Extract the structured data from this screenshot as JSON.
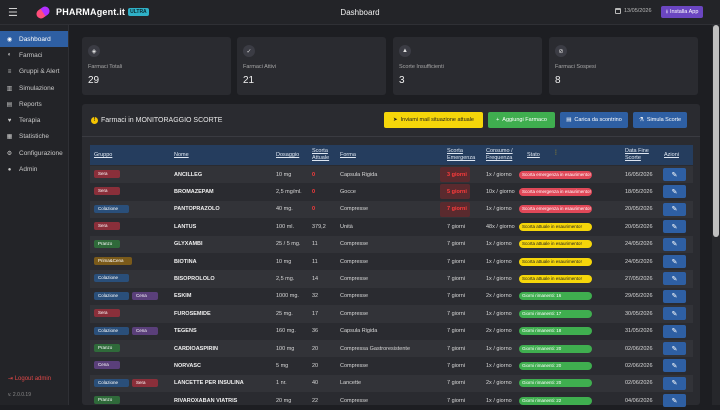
{
  "app": {
    "brand": "PHARMAgent.it",
    "brand_badge": "ULTRA",
    "page_title": "Dashboard",
    "date": "13/05/2026",
    "install_label": "Installa App"
  },
  "sidebar": {
    "items": [
      {
        "label": "Dashboard",
        "icon": "dashboard-icon",
        "active": true
      },
      {
        "label": "Farmaci",
        "icon": "pill-icon"
      },
      {
        "label": "Gruppi & Alert",
        "icon": "layers-icon"
      },
      {
        "label": "Simulazione",
        "icon": "chart-icon"
      },
      {
        "label": "Reports",
        "icon": "file-icon"
      },
      {
        "label": "Terapia",
        "icon": "heart-pulse-icon"
      },
      {
        "label": "Statistiche",
        "icon": "stats-icon"
      },
      {
        "label": "Configurazione",
        "icon": "gear-icon"
      },
      {
        "label": "Admin",
        "icon": "user-icon"
      }
    ],
    "logout": "Logout admin",
    "version": "v. 2.0.0.19"
  },
  "cards": [
    {
      "label": "Farmaci Totali",
      "value": "29",
      "icon": "pills-icon"
    },
    {
      "label": "Farmaci Attivi",
      "value": "21",
      "icon": "check-icon"
    },
    {
      "label": "Scorte Insufficienti",
      "value": "3",
      "icon": "warning-icon"
    },
    {
      "label": "Farmaci Sospesi",
      "value": "8",
      "icon": "ban-icon"
    }
  ],
  "panel": {
    "title": "Farmaci in MONITORAGGIO SCORTE",
    "buttons": {
      "mail": "Inviami mail situazione attuale",
      "add": "Aggiungi Farmaco",
      "load": "Carica da scontrino",
      "simulate": "Simula Scorte"
    }
  },
  "table": {
    "headers": {
      "gruppo": "Gruppo",
      "nome": "Nome",
      "dosaggio": "Dosaggio",
      "scorta": "Scorta Attuale",
      "forma": "Forma",
      "emergenza": "Scorta Emergenza",
      "consumo": "Consumo / Frequenza",
      "stato": "Stato",
      "data": "Data Fine Scorte",
      "azioni": "Azioni"
    },
    "rows": [
      {
        "tags": [
          {
            "text": "Sera",
            "color": "#8a2f3a"
          }
        ],
        "name": "ANCILLEG",
        "dose": "10 mg",
        "stock": "0",
        "stock_red": true,
        "form": "Capsula Rigida",
        "emerg": "3 giorni",
        "emerg_red": true,
        "consumo": "1x / giorno",
        "status": "Scorta emergenza in esaurimento!",
        "status_color": "red",
        "date": "16/05/2026"
      },
      {
        "tags": [
          {
            "text": "Sera",
            "color": "#8a2f3a"
          }
        ],
        "name": "BROMAZEPAM",
        "dose": "2,5 mg/ml.",
        "stock": "0",
        "stock_red": true,
        "form": "Gocce",
        "emerg": "5 giorni",
        "emerg_red": true,
        "consumo": "10x / giorno",
        "status": "Scorta emergenza in esaurimento!",
        "status_color": "red",
        "date": "18/05/2026"
      },
      {
        "tags": [
          {
            "text": "Colazione",
            "color": "#2a4f7a"
          }
        ],
        "name": "PANTOPRAZOLO",
        "dose": "40 mg.",
        "stock": "0",
        "stock_red": true,
        "form": "Compresse",
        "emerg": "7 giorni",
        "emerg_red": true,
        "consumo": "1x / giorno",
        "status": "Scorta emergenza in esaurimento!",
        "status_color": "red",
        "date": "20/05/2026"
      },
      {
        "tags": [
          {
            "text": "Sera",
            "color": "#8a2f3a"
          }
        ],
        "name": "LANTUS",
        "dose": "100 ml.",
        "stock": "379,2",
        "form": "Unità",
        "emerg": "7 giorni",
        "consumo": "48x / giorno",
        "status": "Scorta attuale in esaurimento!",
        "status_color": "yellow",
        "date": "20/05/2026"
      },
      {
        "tags": [
          {
            "text": "Pranzo",
            "color": "#2f6a3a"
          }
        ],
        "name": "GLYXAMBI",
        "dose": "25 / 5 mg.",
        "stock": "11",
        "form": "Compresse",
        "emerg": "7 giorni",
        "consumo": "1x / giorno",
        "status": "Scorta attuale in esaurimento!",
        "status_color": "yellow",
        "date": "24/05/2026"
      },
      {
        "tags": [
          {
            "text": "Prima&Cena",
            "color": "#7a5a1a"
          }
        ],
        "name": "BIOTINA",
        "dose": "10 mg",
        "stock": "11",
        "form": "Compresse",
        "emerg": "7 giorni",
        "consumo": "1x / giorno",
        "status": "Scorta attuale in esaurimento!",
        "status_color": "yellow",
        "date": "24/05/2026"
      },
      {
        "tags": [
          {
            "text": "Colazione",
            "color": "#2a4f7a"
          }
        ],
        "name": "BISOPROLOLO",
        "dose": "2,5 mg.",
        "stock": "14",
        "form": "Compresse",
        "emerg": "7 giorni",
        "consumo": "1x / giorno",
        "status": "Scorta attuale in esaurimento!",
        "status_color": "yellow",
        "date": "27/05/2026"
      },
      {
        "tags": [
          {
            "text": "Colazione",
            "color": "#2a4f7a"
          },
          {
            "text": "Cena",
            "color": "#5a3f7a"
          }
        ],
        "name": "ESKIM",
        "dose": "1000 mg.",
        "stock": "32",
        "form": "Compresse",
        "emerg": "7 giorni",
        "consumo": "2x / giorno",
        "status": "Giorni rimanenti: 16",
        "status_color": "green",
        "date": "29/05/2026"
      },
      {
        "tags": [
          {
            "text": "Sera",
            "color": "#8a2f3a"
          }
        ],
        "name": "FUROSEMIDE",
        "dose": "25 mg.",
        "stock": "17",
        "form": "Compresse",
        "emerg": "7 giorni",
        "consumo": "1x / giorno",
        "status": "Giorni rimanenti: 17",
        "status_color": "green",
        "date": "30/05/2026"
      },
      {
        "tags": [
          {
            "text": "Colazione",
            "color": "#2a4f7a"
          },
          {
            "text": "Cena",
            "color": "#5a3f7a"
          }
        ],
        "name": "TEGENS",
        "dose": "160 mg.",
        "stock": "36",
        "form": "Capsula Rigida",
        "emerg": "7 giorni",
        "consumo": "2x / giorno",
        "status": "Giorni rimanenti: 18",
        "status_color": "green",
        "date": "31/05/2026"
      },
      {
        "tags": [
          {
            "text": "Pranzo",
            "color": "#2f6a3a"
          }
        ],
        "name": "CARDIOASPIRIN",
        "dose": "100 mg",
        "stock": "20",
        "form": "Compressa Gastroresistente",
        "emerg": "7 giorni",
        "consumo": "1x / giorno",
        "status": "Giorni rimanenti: 20",
        "status_color": "green",
        "date": "02/06/2026"
      },
      {
        "tags": [
          {
            "text": "Cena",
            "color": "#5a3f7a"
          }
        ],
        "name": "NORVASC",
        "dose": "5 mg",
        "stock": "20",
        "form": "Compresse",
        "emerg": "7 giorni",
        "consumo": "1x / giorno",
        "status": "Giorni rimanenti: 20",
        "status_color": "green",
        "date": "02/06/2026"
      },
      {
        "tags": [
          {
            "text": "Colazione",
            "color": "#2a4f7a"
          },
          {
            "text": "Sera",
            "color": "#8a2f3a"
          }
        ],
        "name": "LANCETTE PER INSULINA",
        "dose": "1 nr.",
        "stock": "40",
        "form": "Lancette",
        "emerg": "7 giorni",
        "consumo": "2x / giorno",
        "status": "Giorni rimanenti: 20",
        "status_color": "green",
        "date": "02/06/2026"
      },
      {
        "tags": [
          {
            "text": "Pranzo",
            "color": "#2f6a3a"
          }
        ],
        "name": "RIVAROXABAN VIATRIS",
        "dose": "20 mg",
        "stock": "22",
        "form": "Compresse",
        "emerg": "7 giorni",
        "consumo": "1x / giorno",
        "status": "Giorni rimanenti: 22",
        "status_color": "green",
        "date": "04/06/2026"
      }
    ]
  }
}
